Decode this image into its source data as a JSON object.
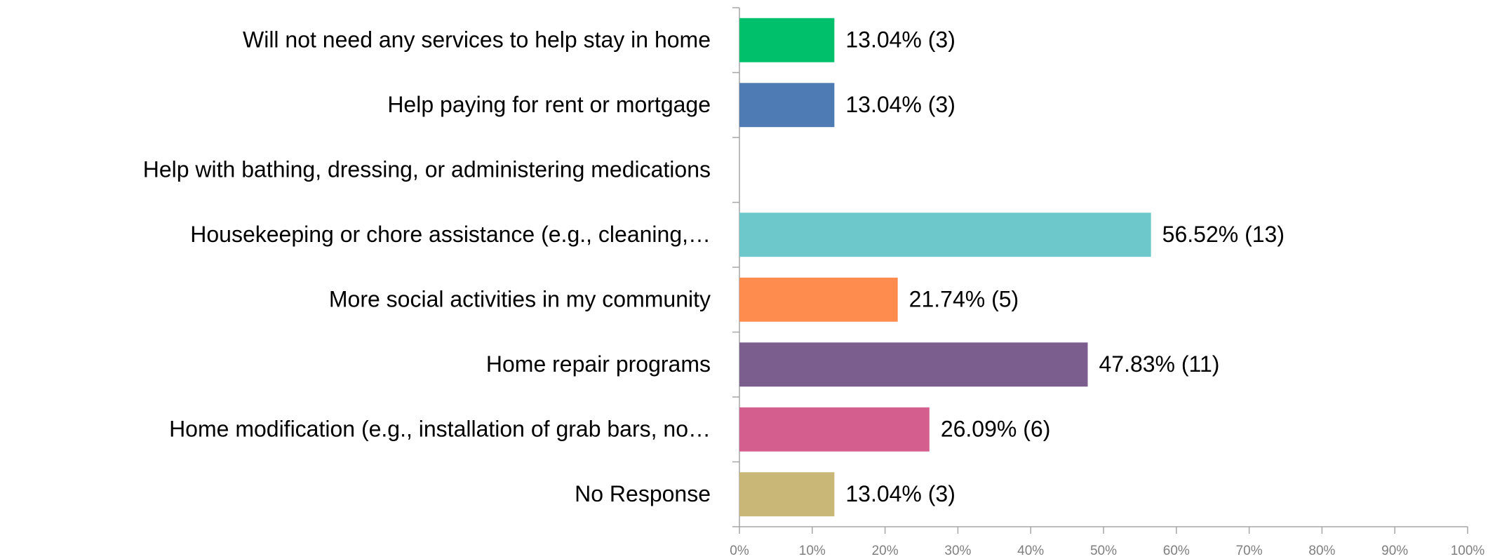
{
  "chart_data": {
    "type": "hbar",
    "categories": [
      "Will not need any services to help stay in home",
      "Help paying for rent or mortgage",
      "Help with bathing, dressing, or administering medications",
      "Housekeeping or chore assistance (e.g., cleaning,…",
      "More social activities in my community",
      "Home repair programs",
      "Home modification (e.g., installation of grab bars, no…",
      "No Response"
    ],
    "values": [
      13.04,
      13.04,
      null,
      56.52,
      21.74,
      47.83,
      26.09,
      13.04
    ],
    "value_labels": [
      "13.04% (3)",
      "13.04% (3)",
      null,
      "56.52% (13)",
      "21.74% (5)",
      "47.83% (11)",
      "26.09% (6)",
      "13.04% (3)"
    ],
    "colors": [
      "#00c06b",
      "#4f7bb5",
      "#9aa9cf",
      "#6dc8cc",
      "#fe8c4f",
      "#7b5e8e",
      "#d45f8e",
      "#c9b777"
    ],
    "xlim": [
      0,
      100
    ],
    "xticks": [
      {
        "value": 0,
        "label": "0%"
      },
      {
        "value": 10,
        "label": "10%"
      },
      {
        "value": 20,
        "label": "20%"
      },
      {
        "value": 30,
        "label": "30%"
      },
      {
        "value": 40,
        "label": "40%"
      },
      {
        "value": 50,
        "label": "50%"
      },
      {
        "value": 60,
        "label": "60%"
      },
      {
        "value": 70,
        "label": "70%"
      },
      {
        "value": 80,
        "label": "80%"
      },
      {
        "value": 90,
        "label": "90%"
      },
      {
        "value": 100,
        "label": "100%"
      }
    ]
  }
}
